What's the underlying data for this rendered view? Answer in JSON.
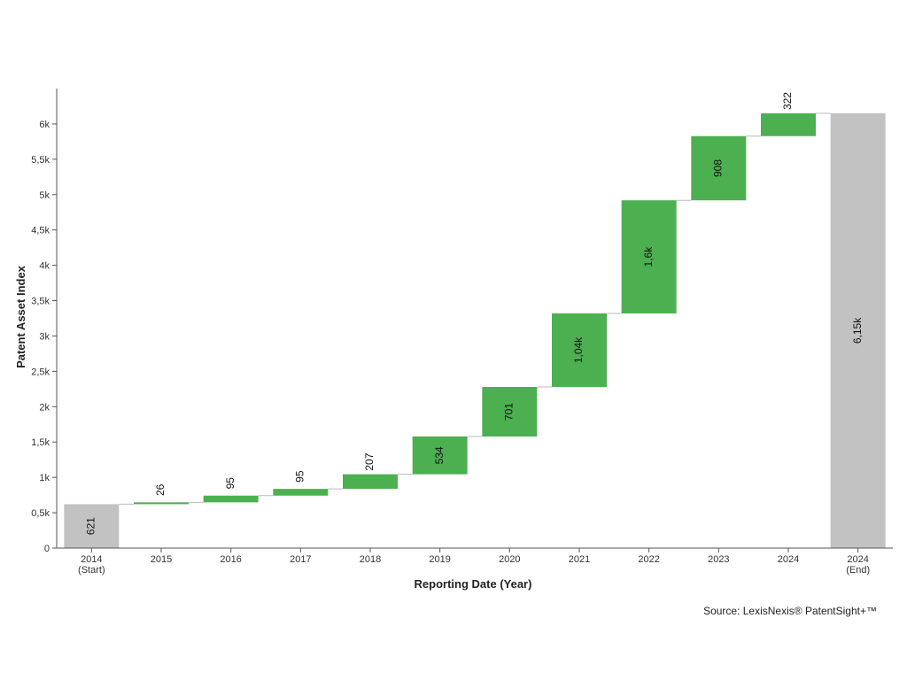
{
  "source_note": "Source: LexisNexis® PatentSight+™",
  "colors": {
    "increase": "#4caf50",
    "total": "#c2c2c2",
    "axis": "#555555",
    "connector": "#bbbbbb"
  },
  "chart_data": {
    "type": "waterfall",
    "xlabel": "Reporting Date (Year)",
    "ylabel": "Patent Asset Index",
    "ylim": [
      0,
      6500
    ],
    "yticks": [
      {
        "value": 0,
        "label": "0"
      },
      {
        "value": 500,
        "label": "0,5k"
      },
      {
        "value": 1000,
        "label": "1k"
      },
      {
        "value": 1500,
        "label": "1,5k"
      },
      {
        "value": 2000,
        "label": "2k"
      },
      {
        "value": 2500,
        "label": "2,5k"
      },
      {
        "value": 3000,
        "label": "3k"
      },
      {
        "value": 3500,
        "label": "3,5k"
      },
      {
        "value": 4000,
        "label": "4k"
      },
      {
        "value": 4500,
        "label": "4,5k"
      },
      {
        "value": 5000,
        "label": "5k"
      },
      {
        "value": 5500,
        "label": "5,5k"
      },
      {
        "value": 6000,
        "label": "6k"
      }
    ],
    "categories": [
      {
        "label": "2014",
        "sublabel": "(Start)",
        "kind": "total",
        "value": 621,
        "value_label": "621"
      },
      {
        "label": "2015",
        "sublabel": "",
        "kind": "delta",
        "value": 26,
        "value_label": "26"
      },
      {
        "label": "2016",
        "sublabel": "",
        "kind": "delta",
        "value": 95,
        "value_label": "95"
      },
      {
        "label": "2017",
        "sublabel": "",
        "kind": "delta",
        "value": 95,
        "value_label": "95"
      },
      {
        "label": "2018",
        "sublabel": "",
        "kind": "delta",
        "value": 207,
        "value_label": "207"
      },
      {
        "label": "2019",
        "sublabel": "",
        "kind": "delta",
        "value": 534,
        "value_label": "534"
      },
      {
        "label": "2020",
        "sublabel": "",
        "kind": "delta",
        "value": 701,
        "value_label": "701"
      },
      {
        "label": "2021",
        "sublabel": "",
        "kind": "delta",
        "value": 1040,
        "value_label": "1,04k"
      },
      {
        "label": "2022",
        "sublabel": "",
        "kind": "delta",
        "value": 1600,
        "value_label": "1,6k"
      },
      {
        "label": "2023",
        "sublabel": "",
        "kind": "delta",
        "value": 908,
        "value_label": "908"
      },
      {
        "label": "2024",
        "sublabel": "",
        "kind": "delta",
        "value": 322,
        "value_label": "322"
      },
      {
        "label": "2024",
        "sublabel": "(End)",
        "kind": "total",
        "value": 6150,
        "value_label": "6,15k"
      }
    ],
    "grid": false,
    "legend": "none"
  }
}
